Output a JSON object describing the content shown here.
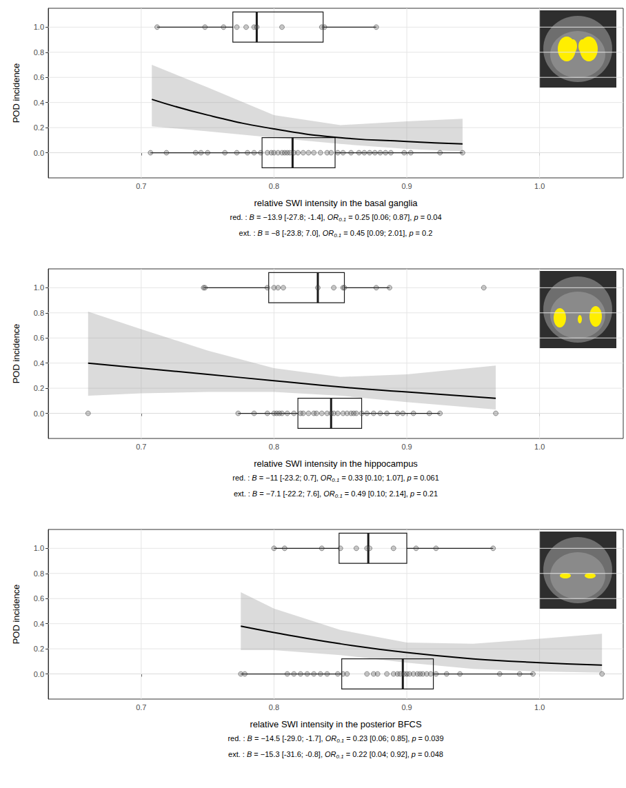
{
  "chart_data": [
    {
      "type": "scatter",
      "x_label": "relative SWI intensity in the basal ganglia",
      "y_label": "POD incidence",
      "xlim": [
        0.63,
        1.063
      ],
      "xticks": [
        0.7,
        0.8,
        0.9,
        {
          "value": 1,
          "label": "1.0"
        }
      ],
      "ylim": [
        -0.2,
        1.15
      ],
      "yticks": [
        {
          "value": 0,
          "label": "0.0"
        },
        0.2,
        0.4,
        0.6,
        0.8,
        {
          "value": 1,
          "label": "1.0"
        }
      ],
      "grid": true,
      "series": [
        {
          "y": 1,
          "x": [
            0.712,
            0.748,
            0.762,
            0.772,
            0.779,
            0.785,
            0.787,
            0.806,
            0.836,
            0.838,
            0.877
          ],
          "box": {
            "min": 0.712,
            "q1": 0.769,
            "median": 0.787,
            "q3": 0.837,
            "max": 0.877
          }
        },
        {
          "y": 0,
          "x": [
            0.707,
            0.719,
            0.741,
            0.745,
            0.75,
            0.763,
            0.772,
            0.78,
            0.785,
            0.79,
            0.795,
            0.798,
            0.8,
            0.803,
            0.806,
            0.808,
            0.81,
            0.812,
            0.815,
            0.818,
            0.822,
            0.826,
            0.83,
            0.835,
            0.84,
            0.843,
            0.848,
            0.852,
            0.858,
            0.864,
            0.868,
            0.872,
            0.876,
            0.88,
            0.884,
            0.888,
            0.898,
            0.903,
            0.925,
            0.942
          ],
          "box": {
            "min": 0.707,
            "q1": 0.791,
            "median": 0.814,
            "q3": 0.846,
            "max": 0.942
          }
        }
      ],
      "curve": {
        "x": [
          0.708,
          0.75,
          0.8,
          0.85,
          0.9,
          0.942
        ],
        "y": [
          0.425,
          0.3,
          0.19,
          0.12,
          0.09,
          0.07
        ],
        "lower": [
          0.21,
          0.17,
          0.12,
          0.07,
          0.03,
          0.01
        ],
        "upper": [
          0.7,
          0.52,
          0.3,
          0.22,
          0.25,
          0.27
        ]
      },
      "captions": [
        [
          {
            "text": "red. : ",
            "style": "n"
          },
          {
            "text": "B",
            "style": "i"
          },
          {
            "text": " = −13.9 [-27.8; -1.4], ",
            "style": "n"
          },
          {
            "text": "OR",
            "style": "i"
          },
          {
            "text": "0.1",
            "style": "sub"
          },
          {
            "text": " = 0.25 [0.06; 0.87], ",
            "style": "n"
          },
          {
            "text": "p",
            "style": "i"
          },
          {
            "text": " = 0.04",
            "style": "n"
          }
        ],
        [
          {
            "text": "ext. : ",
            "style": "n"
          },
          {
            "text": "B",
            "style": "i"
          },
          {
            "text": " = −8 [-23.8; 7.0], ",
            "style": "n"
          },
          {
            "text": "OR",
            "style": "i"
          },
          {
            "text": "0.1",
            "style": "sub"
          },
          {
            "text": " = 0.45 [0.09; 2.01], ",
            "style": "n"
          },
          {
            "text": "p",
            "style": "i"
          },
          {
            "text": " = 0.2",
            "style": "n"
          }
        ]
      ]
    },
    {
      "type": "scatter",
      "x_label": "relative SWI intensity in the hippocampus",
      "y_label": "POD incidence",
      "xlim": [
        0.63,
        1.063
      ],
      "xticks": [
        0.7,
        0.8,
        0.9,
        {
          "value": 1,
          "label": "1.0"
        }
      ],
      "ylim": [
        -0.2,
        1.15
      ],
      "yticks": [
        {
          "value": 0,
          "label": "0.0"
        },
        0.2,
        0.4,
        0.6,
        0.8,
        {
          "value": 1,
          "label": "1.0"
        }
      ],
      "grid": true,
      "series": [
        {
          "y": 1,
          "x": [
            0.747,
            0.748,
            0.795,
            0.8,
            0.803,
            0.807,
            0.833,
            0.845,
            0.852,
            0.853,
            0.877,
            0.887,
            0.958
          ],
          "box": {
            "min": 0.747,
            "q1": 0.796,
            "median": 0.833,
            "q3": 0.853,
            "max": 0.887
          }
        },
        {
          "y": 0,
          "x": [
            0.66,
            0.773,
            0.785,
            0.795,
            0.8,
            0.802,
            0.804,
            0.806,
            0.81,
            0.815,
            0.82,
            0.822,
            0.826,
            0.83,
            0.832,
            0.836,
            0.84,
            0.843,
            0.845,
            0.848,
            0.852,
            0.855,
            0.858,
            0.86,
            0.862,
            0.866,
            0.87,
            0.875,
            0.88,
            0.885,
            0.893,
            0.897,
            0.905,
            0.917,
            0.925,
            0.967
          ],
          "box": {
            "min": 0.773,
            "q1": 0.818,
            "median": 0.843,
            "q3": 0.866,
            "max": 0.925
          }
        }
      ],
      "curve": {
        "x": [
          0.66,
          0.7,
          0.75,
          0.8,
          0.85,
          0.9,
          0.967
        ],
        "y": [
          0.4,
          0.36,
          0.31,
          0.26,
          0.21,
          0.17,
          0.12
        ],
        "lower": [
          0.14,
          0.16,
          0.17,
          0.17,
          0.14,
          0.09,
          0.03
        ],
        "upper": [
          0.81,
          0.67,
          0.5,
          0.36,
          0.29,
          0.31,
          0.38
        ]
      },
      "captions": [
        [
          {
            "text": "red. : ",
            "style": "n"
          },
          {
            "text": "B",
            "style": "i"
          },
          {
            "text": " = −11 [-23.2; 0.7], ",
            "style": "n"
          },
          {
            "text": "OR",
            "style": "i"
          },
          {
            "text": "0.1",
            "style": "sub"
          },
          {
            "text": " = 0.33 [0.10; 1.07], ",
            "style": "n"
          },
          {
            "text": "p",
            "style": "i"
          },
          {
            "text": " = 0.061",
            "style": "n"
          }
        ],
        [
          {
            "text": "ext. : ",
            "style": "n"
          },
          {
            "text": "B",
            "style": "i"
          },
          {
            "text": " = −7.1 [-22.2; 7.6], ",
            "style": "n"
          },
          {
            "text": "OR",
            "style": "i"
          },
          {
            "text": "0.1",
            "style": "sub"
          },
          {
            "text": " = 0.49 [0.10; 2.14], ",
            "style": "n"
          },
          {
            "text": "p",
            "style": "i"
          },
          {
            "text": " = 0.21",
            "style": "n"
          }
        ]
      ]
    },
    {
      "type": "scatter",
      "x_label": "relative SWI intensity in the posterior BFCS",
      "y_label": "POD incidence",
      "xlim": [
        0.63,
        1.063
      ],
      "xticks": [
        0.7,
        0.8,
        0.9,
        {
          "value": 1,
          "label": "1.0"
        }
      ],
      "ylim": [
        -0.2,
        1.15
      ],
      "yticks": [
        {
          "value": 0,
          "label": "0.0"
        },
        0.2,
        0.4,
        0.6,
        0.8,
        {
          "value": 1,
          "label": "1.0"
        }
      ],
      "grid": true,
      "series": [
        {
          "y": 1,
          "x": [
            0.8,
            0.808,
            0.836,
            0.85,
            0.862,
            0.87,
            0.872,
            0.89,
            0.907,
            0.922,
            0.965
          ],
          "box": {
            "min": 0.8,
            "q1": 0.849,
            "median": 0.871,
            "q3": 0.9,
            "max": 0.965
          }
        },
        {
          "y": 0,
          "x": [
            0.775,
            0.778,
            0.81,
            0.815,
            0.82,
            0.825,
            0.83,
            0.835,
            0.84,
            0.848,
            0.852,
            0.855,
            0.87,
            0.875,
            0.878,
            0.885,
            0.89,
            0.893,
            0.895,
            0.898,
            0.9,
            0.902,
            0.905,
            0.908,
            0.91,
            0.912,
            0.915,
            0.918,
            0.922,
            0.93,
            0.94,
            0.97,
            0.985,
            0.995,
            1.047
          ],
          "box": {
            "min": 0.775,
            "q1": 0.851,
            "median": 0.897,
            "q3": 0.92,
            "max": 0.995
          }
        }
      ],
      "curve": {
        "x": [
          0.775,
          0.8,
          0.85,
          0.9,
          0.95,
          1.0,
          1.047
        ],
        "y": [
          0.38,
          0.33,
          0.24,
          0.17,
          0.12,
          0.09,
          0.07
        ],
        "lower": [
          0.19,
          0.19,
          0.15,
          0.09,
          0.04,
          0.02,
          0.01
        ],
        "upper": [
          0.65,
          0.52,
          0.35,
          0.25,
          0.24,
          0.28,
          0.32
        ]
      },
      "captions": [
        [
          {
            "text": "red. : ",
            "style": "n"
          },
          {
            "text": "B",
            "style": "i"
          },
          {
            "text": " = −14.5 [-29.0; -1.7], ",
            "style": "n"
          },
          {
            "text": "OR",
            "style": "i"
          },
          {
            "text": "0.1",
            "style": "sub"
          },
          {
            "text": " = 0.23 [0.06; 0.85], ",
            "style": "n"
          },
          {
            "text": "p",
            "style": "i"
          },
          {
            "text": " = 0.039",
            "style": "n"
          }
        ],
        [
          {
            "text": "ext. : ",
            "style": "n"
          },
          {
            "text": "B",
            "style": "i"
          },
          {
            "text": " = −15.3 [-31.6; -0.8], ",
            "style": "n"
          },
          {
            "text": "OR",
            "style": "i"
          },
          {
            "text": "0.1",
            "style": "sub"
          },
          {
            "text": " = 0.22 [0.04; 0.92], ",
            "style": "n"
          },
          {
            "text": "p",
            "style": "i"
          },
          {
            "text": " = 0.048",
            "style": "n"
          }
        ]
      ]
    }
  ]
}
